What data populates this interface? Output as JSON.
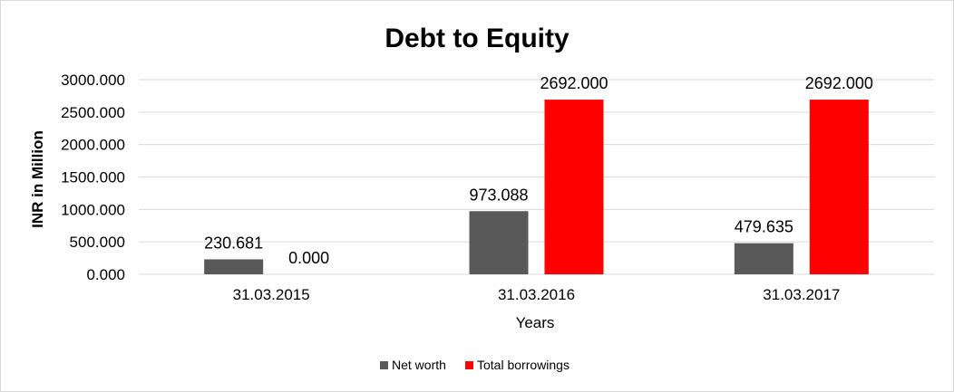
{
  "chart_data": {
    "type": "bar",
    "title": "Debt to Equity",
    "xlabel": "Years",
    "ylabel": "INR in Million",
    "categories": [
      "31.03.2015",
      "31.03.2016",
      "31.03.2017"
    ],
    "series": [
      {
        "name": "Net worth",
        "values": [
          230.681,
          973.088,
          479.635
        ],
        "color": "#595959"
      },
      {
        "name": "Total borrowings",
        "values": [
          0.0,
          2692.0,
          2692.0
        ],
        "color": "#ff0000"
      }
    ],
    "ylim": [
      0,
      3000
    ],
    "yticks": [
      "0.000",
      "500.000",
      "1000.000",
      "1500.000",
      "2000.000",
      "2500.000",
      "3000.000"
    ],
    "data_labels": [
      [
        "230.681",
        "973.088",
        "479.635"
      ],
      [
        "0.000",
        "2692.000",
        "2692.000"
      ]
    ],
    "grid": true,
    "legend_position": "bottom"
  }
}
